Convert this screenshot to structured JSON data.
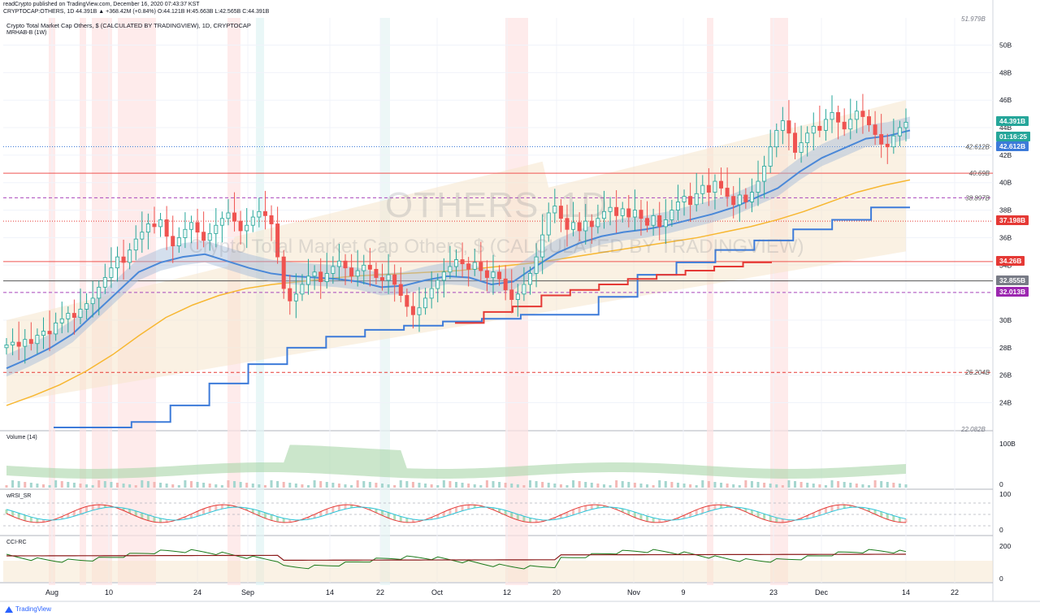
{
  "header": {
    "published": "readCrypto published on TradingView.com, December 16, 2020 07:43:37 KST",
    "ohlc": "CRYPTOCAP:OTHERS, 1D  44.391B  ▲ +368.42M (+0.84%)  O:44.121B  H:45.663B  L:42.565B  C:44.391B"
  },
  "symbol_info": "Crypto Total Market Cap Others, $ (CALCULATED BY TRADINGVIEW), 1D, CRYPTOCAP",
  "indicator_label": "MRHAB-B (1W)",
  "watermark": {
    "line1": "OTHERS, 1D",
    "line2": "Crypto Total Market Cap Others, $ (CALCULATED BY TRADINGVIEW)"
  },
  "panels": {
    "volume": "Volume (14)",
    "wrsi": "wRSI_SR",
    "cci": "CCI-RC"
  },
  "brand": "TradingView",
  "colors": {
    "up": "#26a69a",
    "down": "#ef5350",
    "ha_up": "#f0a080",
    "ha_down": "#7ec8c8",
    "ma_blue": "#4a88d8",
    "ma_orange": "#f7b731",
    "step_blue": "#3d7bd9",
    "step_red": "#e53935"
  },
  "chart_data": {
    "type": "line",
    "xlabel": "",
    "ylabel": "",
    "ylim": [
      22.082,
      51.979
    ],
    "x_tick_labels": [
      "Aug",
      "10",
      "24",
      "Sep",
      "14",
      "22",
      "Oct",
      "12",
      "20",
      "Nov",
      "9",
      "23",
      "Dec",
      "14",
      "22"
    ],
    "y_tick_labels": [
      "24B",
      "26B",
      "28B",
      "30B",
      "32B",
      "34B",
      "36B",
      "38B",
      "40B",
      "42B",
      "44B",
      "46B",
      "48B",
      "50B"
    ],
    "y_ticks": [
      24,
      26,
      28,
      30,
      32,
      34,
      36,
      38,
      40,
      42,
      44,
      46,
      48,
      50
    ],
    "top_label": "51.979B",
    "bottom_label": "22.082B",
    "horizontal_levels": [
      {
        "label": "42.612B",
        "value": 42.612,
        "style": "dotted-blue"
      },
      {
        "label": "40.69B",
        "value": 40.69,
        "style": "solid-red"
      },
      {
        "label": "38.897B",
        "value": 38.897,
        "style": "dashed-purple"
      },
      {
        "label": "37.198B",
        "value": 37.198,
        "style": "dotted-red"
      },
      {
        "label": "34.26B",
        "value": 34.26,
        "style": "solid-red"
      },
      {
        "label": "32.855B",
        "value": 32.855,
        "style": "solid-gray"
      },
      {
        "label": "32.013B",
        "value": 32.013,
        "style": "dashed-purple"
      },
      {
        "label": "26.204B",
        "value": 26.204,
        "style": "dashed-red"
      }
    ],
    "price_labels": [
      {
        "text": "44.391B",
        "color": "#26a69a",
        "value": 44.391
      },
      {
        "text": "01:16:25",
        "color": "#26a69a",
        "value": 43.3
      },
      {
        "text": "42.612B",
        "color": "#3d7bd9",
        "value": 42.612
      },
      {
        "text": "37.198B",
        "color": "#e53935",
        "value": 37.198
      },
      {
        "text": "34.26B",
        "color": "#e53935",
        "value": 34.26
      },
      {
        "text": "32.855B",
        "color": "#787b86",
        "value": 32.855
      },
      {
        "text": "32.013B",
        "color": "#9c27b0",
        "value": 32.013
      }
    ],
    "series": [
      {
        "type": "candlestick",
        "close": [
          28.2,
          28.4,
          28.1,
          28.6,
          28.3,
          28.9,
          29.2,
          29.0,
          29.8,
          30.1,
          30.5,
          30.2,
          30.8,
          31.2,
          31.6,
          32.4,
          33.1,
          33.8,
          34.6,
          34.2,
          35.1,
          35.9,
          36.4,
          37.0,
          36.8,
          37.3,
          36.1,
          35.4,
          36.0,
          36.6,
          37.1,
          36.4,
          35.8,
          36.3,
          36.9,
          37.4,
          37.8,
          37.2,
          36.5,
          36.9,
          37.5,
          37.9,
          37.6,
          37.0,
          34.6,
          32.3,
          31.4,
          31.9,
          32.6,
          33.2,
          33.5,
          32.8,
          33.4,
          33.9,
          34.3,
          33.8,
          33.2,
          33.6,
          34.0,
          33.7,
          33.1,
          32.9,
          33.3,
          32.6,
          31.8,
          31.0,
          30.4,
          30.9,
          31.6,
          32.3,
          32.9,
          33.5,
          33.9,
          34.4,
          34.1,
          33.7,
          34.2,
          33.6,
          33.1,
          33.5,
          33.0,
          32.2,
          31.5,
          31.9,
          32.6,
          33.4,
          34.6,
          36.2,
          37.8,
          38.3,
          37.4,
          36.6,
          37.1,
          36.5,
          37.2,
          36.8,
          37.4,
          37.9,
          38.2,
          37.6,
          38.1,
          37.5,
          38.0,
          37.4,
          36.9,
          37.6,
          36.8,
          37.3,
          38.0,
          38.6,
          39.0,
          38.4,
          39.2,
          39.8,
          39.3,
          40.1,
          39.6,
          39.0,
          38.4,
          39.1,
          38.6,
          39.3,
          40.1,
          41.2,
          42.6,
          43.8,
          44.5,
          43.6,
          42.2,
          42.9,
          43.6,
          44.1,
          43.8,
          44.6,
          45.1,
          44.4,
          43.9,
          44.6,
          45.2,
          44.8,
          44.2,
          43.5,
          42.8,
          42.6,
          43.4,
          44.0,
          44.391
        ]
      },
      {
        "name": "",
        "type": "ema-blue",
        "values": [
          26.5,
          27.2,
          28.0,
          29.0,
          30.5,
          32.0,
          33.5,
          34.2,
          34.6,
          34.8,
          34.3,
          33.8,
          33.4,
          33.2,
          33.1,
          33.0,
          32.8,
          32.4,
          32.5,
          32.9,
          33.2,
          33.1,
          32.6,
          32.8,
          33.9,
          34.9,
          35.6,
          36.1,
          36.4,
          36.6,
          36.9,
          37.3,
          37.7,
          38.2,
          38.9,
          39.6,
          40.8,
          41.8,
          42.5,
          43.2,
          43.4,
          43.8
        ]
      },
      {
        "name": "",
        "type": "ma-orange",
        "values": [
          23.8,
          24.5,
          25.3,
          26.3,
          27.5,
          28.9,
          30.2,
          31.1,
          31.8,
          32.3,
          32.6,
          32.8,
          33.0,
          33.2,
          33.3,
          33.4,
          33.5,
          33.6,
          33.8,
          34.0,
          34.2,
          34.5,
          34.8,
          35.1,
          35.4,
          35.7,
          36.0,
          36.4,
          36.8,
          37.3,
          37.9,
          38.6,
          39.3,
          39.8,
          40.2
        ]
      },
      {
        "name": "",
        "type": "step-blue",
        "values": [
          22.2,
          22.2,
          22.6,
          23.8,
          25.4,
          26.8,
          28.0,
          28.8,
          29.3,
          29.6,
          29.9,
          30.1,
          30.4,
          30.4,
          31.7,
          33.3,
          34.2,
          35.1,
          35.8,
          36.6,
          37.3,
          38.2
        ]
      },
      {
        "name": "",
        "type": "step-red",
        "values": [
          29.8,
          30.6,
          31.0,
          31.8,
          32.2,
          32.6,
          33.0,
          33.3,
          33.6,
          33.9,
          34.2
        ]
      }
    ],
    "volume": {
      "label": "Volume (14)",
      "y_ticks": [
        "100B",
        "0"
      ]
    },
    "wrsi": {
      "label": "wRSI_SR",
      "y_ticks": [
        "100",
        "0"
      ]
    },
    "cci": {
      "label": "CCI-RC",
      "y_ticks": [
        "200",
        "0"
      ]
    }
  }
}
